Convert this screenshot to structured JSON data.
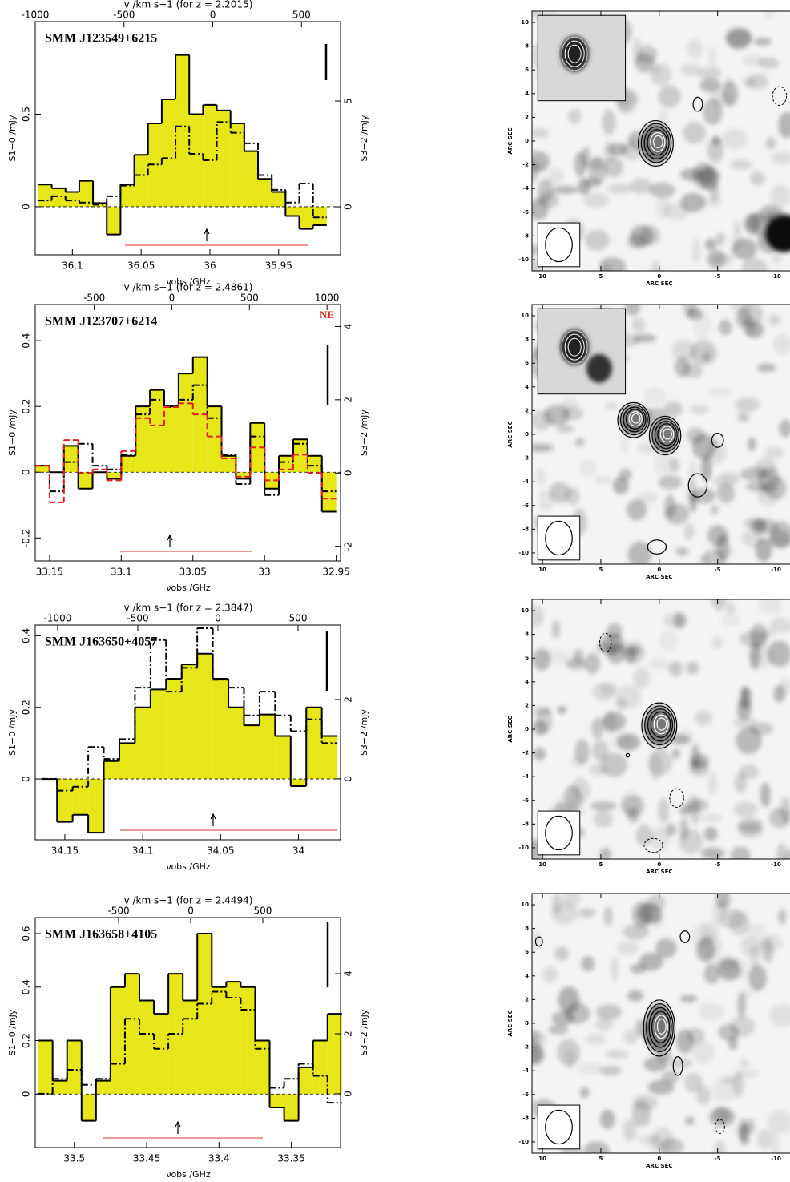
{
  "chart_data": [
    {
      "type": "histogram",
      "title": "SMM J123549+6215",
      "xlabel": "νobs /GHz",
      "x2label": "v /km s−1 (for z = 2.2015)",
      "ylabel": "S1−0 /mJy",
      "y2label": "S3−2 /mJy",
      "bins": [
        36.125,
        36.115,
        36.105,
        36.095,
        36.085,
        36.075,
        36.065,
        36.055,
        36.045,
        36.035,
        36.025,
        36.015,
        36.005,
        35.995,
        35.985,
        35.975,
        35.965,
        35.955,
        35.945,
        35.935,
        35.925,
        35.915
      ],
      "xlim": [
        36.127,
        35.905
      ],
      "xticks": [
        36.1,
        36.05,
        36,
        35.95
      ],
      "x2lim": [
        -1000,
        720
      ],
      "x2ticks": [
        -1000,
        -500,
        0,
        500
      ],
      "ylim": [
        -0.26,
        1.0
      ],
      "yticks": [
        0,
        0.5
      ],
      "y2lim": [
        -2.27,
        8.75
      ],
      "y2ticks": [
        0,
        5
      ],
      "series": [
        {
          "color": "#000000",
          "fill": "#e6e619",
          "style": "solid",
          "values": [
            0.12,
            0.1,
            0.08,
            0.14,
            0.02,
            -0.15,
            0.12,
            0.28,
            0.45,
            0.58,
            0.82,
            0.5,
            0.55,
            0.52,
            0.45,
            0.3,
            0.15,
            0.08,
            -0.05,
            -0.12,
            -0.1
          ]
        },
        {
          "color": "#000000",
          "style": "dashdot",
          "axis": "y2",
          "values": [
            0.3,
            0.5,
            0.3,
            0.2,
            0.1,
            0.5,
            1.0,
            1.5,
            2.0,
            2.3,
            3.8,
            2.5,
            2.2,
            4.0,
            3.5,
            3.0,
            1.5,
            0.8,
            0.2,
            1.1,
            -0.5
          ]
        }
      ]
    },
    {
      "type": "histogram",
      "title": "SMM J123707+6214",
      "xlabel": "νobs /GHz",
      "x2label": "v /km s−1 (for z = 2.4861)",
      "ylabel": "S1−0 /mJy",
      "y2label": "S3−2 /mJy",
      "bins": [
        33.16,
        33.15,
        33.14,
        33.13,
        33.12,
        33.11,
        33.1,
        33.09,
        33.08,
        33.07,
        33.06,
        33.05,
        33.04,
        33.03,
        33.02,
        33.01,
        33,
        32.99,
        32.98,
        32.97,
        32.96,
        32.95
      ],
      "xlim": [
        33.16,
        32.947
      ],
      "xticks": [
        33.15,
        33.1,
        33.05,
        33,
        32.95
      ],
      "x2lim": [
        -880,
        1087
      ],
      "x2ticks": [
        -500,
        0,
        500,
        1000
      ],
      "ylim": [
        -0.27,
        0.51
      ],
      "yticks": [
        -0.2,
        0,
        0.2,
        0.4
      ],
      "y2lim": [
        -2.4,
        4.6
      ],
      "y2ticks": [
        -2,
        0,
        2,
        4
      ],
      "series": [
        {
          "color": "#000000",
          "fill": "#e6e619",
          "style": "solid",
          "values": [
            0.02,
            0.0,
            0.08,
            -0.05,
            0.0,
            -0.02,
            0.05,
            0.2,
            0.25,
            0.2,
            0.3,
            0.35,
            0.2,
            0.05,
            -0.02,
            0.15,
            -0.05,
            0.05,
            0.1,
            0.05,
            -0.12
          ]
        },
        {
          "color": "#000000",
          "style": "dashdot",
          "axis": "y2",
          "values": [
            0.2,
            -0.5,
            0.3,
            0.8,
            0.2,
            0.1,
            0.5,
            1.6,
            2.0,
            1.8,
            2.0,
            2.4,
            1.5,
            0.5,
            -0.3,
            1.0,
            -0.6,
            0.3,
            0.8,
            0.2,
            -0.5
          ]
        },
        {
          "name": "NE",
          "color": "#e02020",
          "style": "dashed",
          "axis": "y2",
          "values": [
            0.2,
            -0.8,
            0.9,
            0.0,
            0.1,
            -0.2,
            0.6,
            1.5,
            1.3,
            1.8,
            1.9,
            1.6,
            1.0,
            0.4,
            -0.1,
            0.7,
            -0.2,
            0.1,
            0.5,
            0.0,
            -0.7
          ]
        }
      ]
    },
    {
      "type": "histogram",
      "title": "SMM J163650+4057",
      "xlabel": "νobs /GHz",
      "x2label": "v /km s−1 (for z = 2.3847)",
      "ylabel": "S1−0 /mJy",
      "y2label": "S3−2 /mJy",
      "bins": [
        34.165,
        34.155,
        34.145,
        34.135,
        34.125,
        34.115,
        34.105,
        34.095,
        34.085,
        34.075,
        34.065,
        34.055,
        34.045,
        34.035,
        34.025,
        34.015,
        34.005,
        33.995,
        33.985,
        33.975
      ],
      "xlim": [
        34.169,
        33.973
      ],
      "xticks": [
        34.15,
        34.1,
        34.05,
        34
      ],
      "x2lim": [
        -1140,
        765
      ],
      "x2ticks": [
        -1000,
        -500,
        0,
        500
      ],
      "ylim": [
        -0.17,
        0.43
      ],
      "yticks": [
        0,
        0.2,
        0.4
      ],
      "y2lim": [
        -1.54,
        3.88
      ],
      "y2ticks": [
        0,
        2
      ],
      "series": [
        {
          "color": "#000000",
          "fill": "#e6e619",
          "style": "solid",
          "values": [
            0.0,
            -0.12,
            -0.1,
            -0.15,
            0.05,
            0.1,
            0.2,
            0.25,
            0.28,
            0.32,
            0.35,
            0.28,
            0.2,
            0.15,
            0.18,
            0.12,
            -0.02,
            0.2,
            0.12
          ]
        },
        {
          "color": "#000000",
          "style": "dashdot",
          "axis": "y2",
          "values": [
            0.0,
            -0.3,
            -0.2,
            0.8,
            0.5,
            1.0,
            2.3,
            3.5,
            2.2,
            2.8,
            3.8,
            2.5,
            2.3,
            1.6,
            2.2,
            1.6,
            1.2,
            1.5,
            0.9
          ]
        }
      ]
    },
    {
      "type": "histogram",
      "title": "SMM J163658+4105",
      "xlabel": "νobs /GHz",
      "x2label": "v /km s−1 (for z = 2.4494)",
      "ylabel": "S1−0 /mJy",
      "y2label": "S3−2 /mJy",
      "bins": [
        33.525,
        33.515,
        33.505,
        33.495,
        33.485,
        33.475,
        33.465,
        33.455,
        33.445,
        33.435,
        33.425,
        33.415,
        33.405,
        33.395,
        33.385,
        33.375,
        33.365,
        33.355,
        33.345,
        33.335,
        33.325,
        33.315
      ],
      "xlim": [
        33.527,
        33.316
      ],
      "xticks": [
        33.5,
        33.45,
        33.4,
        33.35
      ],
      "x2lim": [
        -1078,
        1039
      ],
      "x2ticks": [
        -500,
        0,
        500
      ],
      "ylim": [
        -0.2,
        0.66
      ],
      "yticks": [
        0,
        0.2,
        0.4,
        0.6
      ],
      "y2lim": [
        -1.79,
        5.87
      ],
      "y2ticks": [
        0,
        2,
        4
      ],
      "series": [
        {
          "color": "#000000",
          "fill": "#e6e619",
          "style": "solid",
          "values": [
            0.2,
            0.05,
            0.2,
            -0.1,
            0.05,
            0.4,
            0.45,
            0.35,
            0.3,
            0.45,
            0.35,
            0.6,
            0.4,
            0.42,
            0.4,
            0.2,
            -0.05,
            -0.1,
            0.1,
            0.2,
            0.3
          ]
        },
        {
          "color": "#000000",
          "style": "dashdot",
          "axis": "y2",
          "values": [
            0.0,
            0.5,
            0.8,
            0.3,
            0.5,
            1.0,
            2.5,
            2.0,
            1.5,
            2.0,
            2.5,
            3.0,
            3.4,
            3.2,
            2.8,
            1.5,
            0.2,
            0.5,
            1.0,
            0.6,
            -0.3
          ]
        }
      ]
    },
    {
      "type": "map",
      "xlabel": "ARC SEC",
      "ylabel": "ARC SEC",
      "xlim": [
        10.9,
        -11.2
      ],
      "ylim": [
        -10.95,
        10.95
      ],
      "xticks": [
        10,
        5,
        0,
        -5,
        -10
      ],
      "yticks": [
        10,
        8,
        6,
        4,
        2,
        0,
        -2,
        -4,
        -6,
        -8,
        -10
      ]
    },
    {
      "type": "map",
      "xlabel": "ARC SEC",
      "ylabel": "ARC SEC",
      "xlim": [
        10.9,
        -11.2
      ],
      "ylim": [
        -10.95,
        10.95
      ],
      "xticks": [
        10,
        5,
        0,
        -5,
        -10
      ],
      "yticks": [
        10,
        8,
        6,
        4,
        2,
        0,
        -2,
        -4,
        -6,
        -8,
        -10
      ]
    },
    {
      "type": "map",
      "xlabel": "ARC SEC",
      "ylabel": "ARC SEC",
      "xlim": [
        10.9,
        -11.2
      ],
      "ylim": [
        -10.95,
        10.95
      ],
      "xticks": [
        10,
        5,
        0,
        -5,
        -10
      ],
      "yticks": [
        10,
        8,
        6,
        4,
        2,
        0,
        -2,
        -4,
        -6,
        -8,
        -10
      ]
    },
    {
      "type": "map",
      "xlabel": "ARC SEC",
      "ylabel": "ARC SEC",
      "xlim": [
        10.9,
        -11.2
      ],
      "ylim": [
        -10.95,
        10.95
      ],
      "xticks": [
        10,
        5,
        0,
        -5,
        -10
      ],
      "yticks": [
        10,
        8,
        6,
        4,
        2,
        0,
        -2,
        -4,
        -6,
        -8,
        -10
      ]
    }
  ]
}
